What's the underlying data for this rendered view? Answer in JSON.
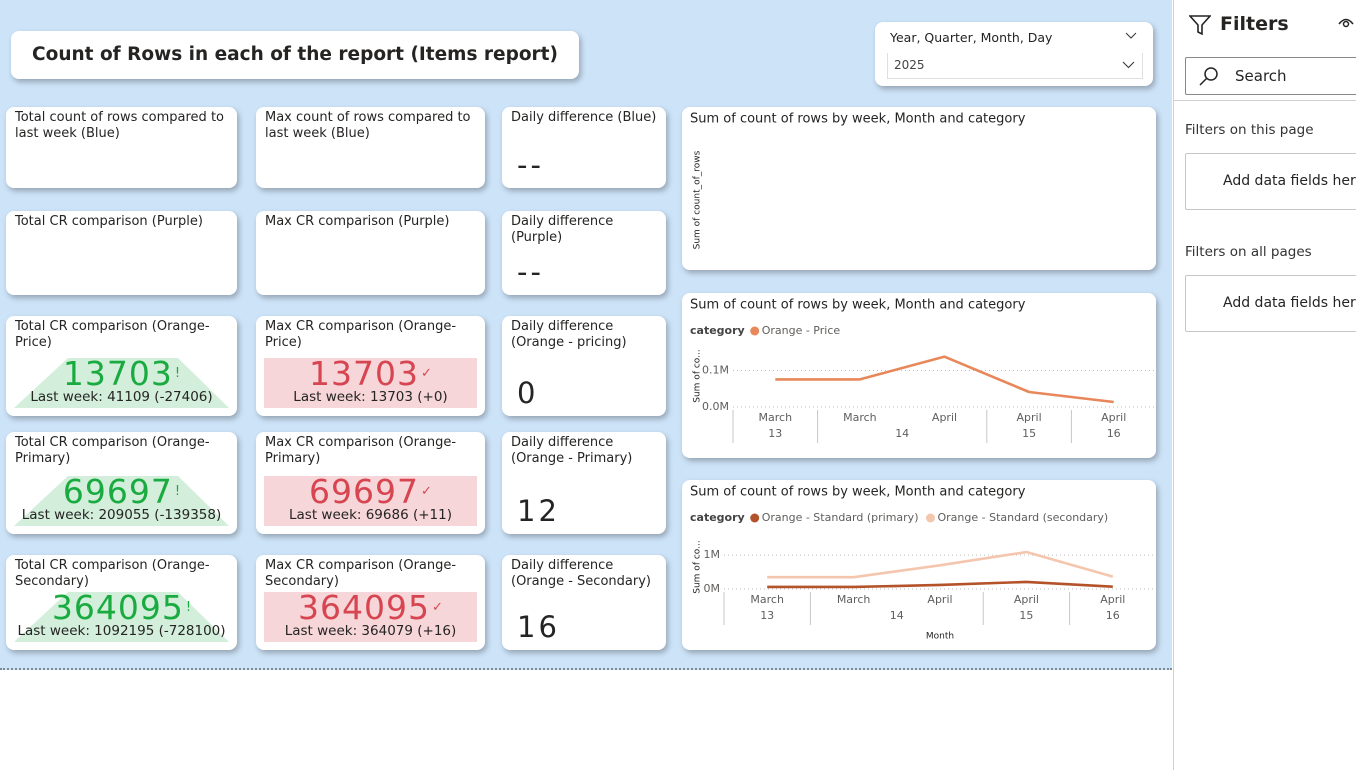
{
  "header": {
    "title": "Count of Rows in each of the report (Items report)"
  },
  "slicer": {
    "label": "Year, Quarter, Month, Day",
    "value": "2025"
  },
  "filters": {
    "title": "Filters",
    "search": "Search",
    "sections": [
      {
        "title": "Filters on this page",
        "placeholder": "Add data fields here"
      },
      {
        "title": "Filters on all pages",
        "placeholder": "Add data fields here"
      }
    ]
  },
  "cards": [
    [
      {
        "title": "Total count of rows compared to last week (Blue)"
      },
      {
        "title": "Max count of rows compared to last week (Blue)"
      },
      {
        "title": "Daily difference (Blue)",
        "value": "--"
      }
    ],
    [
      {
        "title": "Total CR comparison (Purple)"
      },
      {
        "title": "Max CR comparison (Purple)"
      },
      {
        "title": "Daily difference (Purple)",
        "value": "--"
      }
    ],
    [
      {
        "title": "Total CR comparison (Orange-Price)",
        "value": 13703,
        "status": "!",
        "comparison": "Last week: 41109 (-27406)",
        "color": "#1aab40"
      },
      {
        "title": "Max CR comparison (Orange-Price)",
        "value": 13703,
        "status": "✓",
        "comparison": "Last week: 13703 (+0)",
        "color": "#d64550"
      },
      {
        "title": "Daily difference (Orange - pricing)",
        "value": 0
      }
    ],
    [
      {
        "title": "Total CR comparison (Orange-Primary)",
        "value": 69697,
        "status": "!",
        "comparison": "Last week: 209055 (-139358)",
        "color": "#1aab40"
      },
      {
        "title": "Max CR comparison (Orange-Primary)",
        "value": 69697,
        "status": "✓",
        "comparison": "Last week: 69686 (+11)",
        "color": "#d64550"
      },
      {
        "title": "Daily difference (Orange - Primary)",
        "value": 12
      }
    ],
    [
      {
        "title": "Total CR comparison (Orange-Secondary)",
        "value": 364095,
        "status": "!",
        "comparison": "Last week: 1092195 (-728100)",
        "color": "#1aab40"
      },
      {
        "title": "Max CR comparison (Orange-Secondary)",
        "value": 364095,
        "status": "✓",
        "comparison": "Last week: 364079 (+16)",
        "color": "#d64550"
      },
      {
        "title": "Daily difference (Orange - Secondary)",
        "value": 16
      }
    ]
  ],
  "chart_data": [
    {
      "type": "line",
      "title": "Sum of count of rows by week, Month and category",
      "y_label": "Sum of count_of_rows",
      "series": []
    },
    {
      "type": "line",
      "title": "Sum of count of rows by week, Month and category",
      "legend_title": "category",
      "y_label": "Sum of co...",
      "categories": [
        "March",
        "March",
        "April",
        "April",
        "April"
      ],
      "day_labels": [
        "13",
        "14",
        "14",
        "15",
        "16"
      ],
      "series": [
        {
          "name": "Orange - Price",
          "color": "#e8875a",
          "values": [
            75700,
            75700,
            138000,
            41109,
            13703
          ]
        }
      ],
      "ylim": [
        0,
        170000
      ],
      "yticks": [
        {
          "value": 0,
          "label": "0.0M"
        },
        {
          "value": 100000,
          "label": "0.1M"
        }
      ],
      "grid": true
    },
    {
      "type": "line",
      "title": "Sum of count of rows by week, Month and category",
      "legend_title": "category",
      "y_label": "Sum of co...",
      "x_label": "Month",
      "categories": [
        "March",
        "March",
        "April",
        "April",
        "April"
      ],
      "day_labels": [
        "13",
        "14",
        "14",
        "15",
        "16"
      ],
      "series": [
        {
          "name": "Orange - Standard (primary)",
          "color": "#b4532a",
          "values": [
            60000,
            60000,
            120000,
            209055,
            69697
          ]
        },
        {
          "name": "Orange - Standard (secondary)",
          "color": "#f5c6ae",
          "values": [
            350000,
            350000,
            700000,
            1092195,
            364095
          ]
        }
      ],
      "ylim": [
        0,
        1300000
      ],
      "yticks": [
        {
          "value": 0,
          "label": "0M"
        },
        {
          "value": 1000000,
          "label": "1M"
        }
      ],
      "grid": true
    }
  ]
}
